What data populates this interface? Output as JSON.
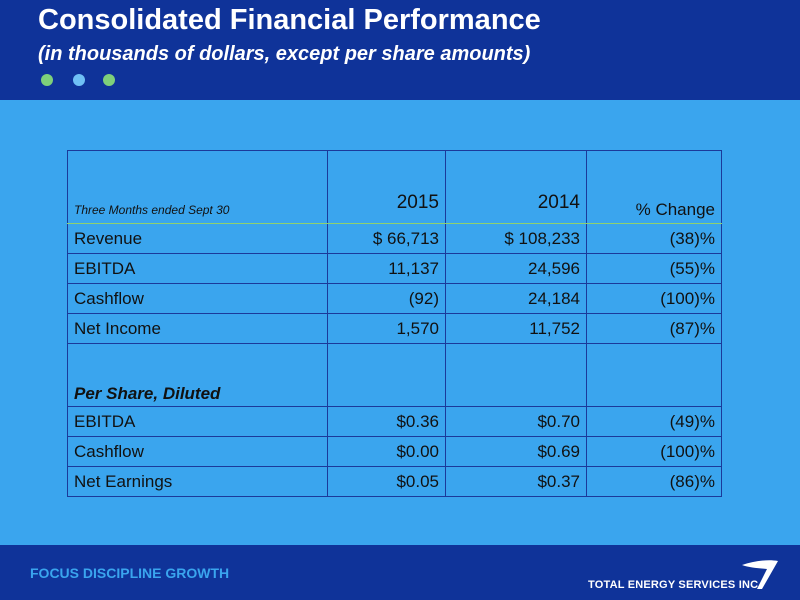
{
  "header": {
    "title": "Consolidated Financial Performance",
    "subtitle": "(in thousands of dollars, except per share amounts)"
  },
  "colors": {
    "header_bg": "#0f3399",
    "body_bg": "#3aa5ee",
    "dot_green": "#7ed07a",
    "dot_blue": "#6fc0f5",
    "tagline": "#3aa5ee"
  },
  "table": {
    "period_label": "Three Months ended  Sept 30",
    "col_2015": "2015",
    "col_2014": "2014",
    "col_change": "% Change",
    "rows": [
      {
        "label": "Revenue",
        "v2015": "$ 66,713",
        "v2014": "$ 108,233",
        "change": "(38)%"
      },
      {
        "label": "EBITDA",
        "v2015": "11,137",
        "v2014": "24,596",
        "change": "(55)%"
      },
      {
        "label": "Cashflow",
        "v2015": "(92)",
        "v2014": "24,184",
        "change": "(100)%"
      },
      {
        "label": "Net Income",
        "v2015": "1,570",
        "v2014": "11,752",
        "change": "(87)%"
      }
    ],
    "section_label": "Per Share, Diluted",
    "per_share_rows": [
      {
        "label": "EBITDA",
        "v2015": "$0.36",
        "v2014": "$0.70",
        "change": "(49)%"
      },
      {
        "label": "Cashflow",
        "v2015": "$0.00",
        "v2014": "$0.69",
        "change": "(100)%"
      },
      {
        "label": "Net Earnings",
        "v2015": "$0.05",
        "v2014": "$0.37",
        "change": "(86)%"
      }
    ]
  },
  "footer": {
    "tagline": "FOCUS  DISCIPLINE  GROWTH",
    "company": "TOTAL ENERGY SERVICES INC."
  },
  "icons": {
    "logo": "swoosh-logo-icon"
  }
}
